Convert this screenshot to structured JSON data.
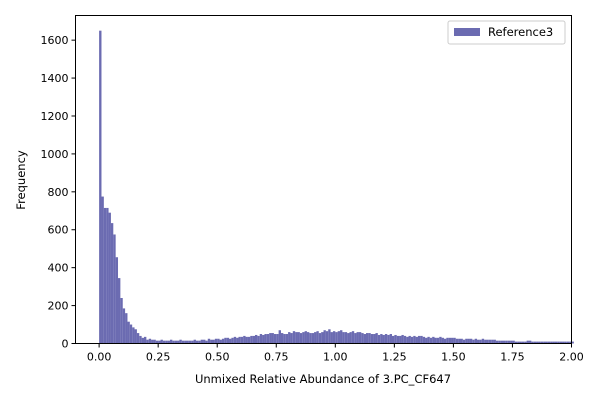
{
  "chart_data": {
    "type": "bar",
    "title": "",
    "xlabel": "Unmixed Relative Abundance of 3.PC_CF647",
    "ylabel": "Frequency",
    "xlim": [
      -0.1,
      2.0
    ],
    "ylim": [
      0,
      1730
    ],
    "xticks": [
      0.0,
      0.25,
      0.5,
      0.75,
      1.0,
      1.25,
      1.5,
      1.75,
      2.0
    ],
    "xtick_labels": [
      "0.00",
      "0.25",
      "0.50",
      "0.75",
      "1.00",
      "1.25",
      "1.50",
      "1.75",
      "2.00"
    ],
    "yticks": [
      0,
      200,
      400,
      600,
      800,
      1000,
      1200,
      1400,
      1600
    ],
    "yticks_labels": [
      "0",
      "200",
      "400",
      "600",
      "800",
      "1000",
      "1200",
      "1400",
      "1600"
    ],
    "grid": false,
    "legend_position": "top-right",
    "bar_color": "#5b5ba8",
    "series": [
      {
        "name": "Reference3",
        "bin_start": 0.0,
        "bin_width": 0.01,
        "values": [
          1650,
          775,
          715,
          715,
          690,
          635,
          575,
          455,
          345,
          240,
          185,
          160,
          115,
          100,
          85,
          75,
          55,
          40,
          30,
          35,
          20,
          25,
          20,
          20,
          15,
          15,
          20,
          15,
          15,
          15,
          20,
          15,
          15,
          15,
          20,
          15,
          15,
          15,
          15,
          15,
          20,
          15,
          15,
          20,
          20,
          15,
          25,
          20,
          20,
          25,
          25,
          20,
          25,
          30,
          30,
          25,
          30,
          35,
          30,
          35,
          35,
          40,
          35,
          35,
          40,
          40,
          45,
          40,
          50,
          45,
          50,
          50,
          55,
          55,
          50,
          50,
          70,
          55,
          50,
          50,
          60,
          55,
          65,
          60,
          60,
          55,
          60,
          65,
          60,
          55,
          55,
          60,
          65,
          55,
          60,
          70,
          65,
          75,
          60,
          65,
          60,
          65,
          70,
          60,
          60,
          55,
          60,
          65,
          55,
          60,
          60,
          55,
          50,
          55,
          55,
          50,
          50,
          55,
          45,
          50,
          45,
          50,
          45,
          50,
          40,
          45,
          40,
          40,
          45,
          40,
          35,
          40,
          35,
          40,
          35,
          40,
          40,
          35,
          30,
          35,
          30,
          35,
          30,
          30,
          35,
          30,
          25,
          30,
          30,
          30,
          30,
          25,
          25,
          25,
          20,
          25,
          25,
          25,
          20,
          25,
          20,
          20,
          25,
          20,
          20,
          20,
          20,
          20,
          15,
          15,
          15,
          15,
          15,
          15,
          15,
          15,
          10,
          10,
          10,
          10,
          10,
          15,
          15,
          10,
          10,
          10,
          10,
          10,
          10,
          10,
          10,
          10,
          10,
          10,
          10,
          10,
          10,
          10,
          10,
          10,
          10
        ]
      }
    ]
  }
}
